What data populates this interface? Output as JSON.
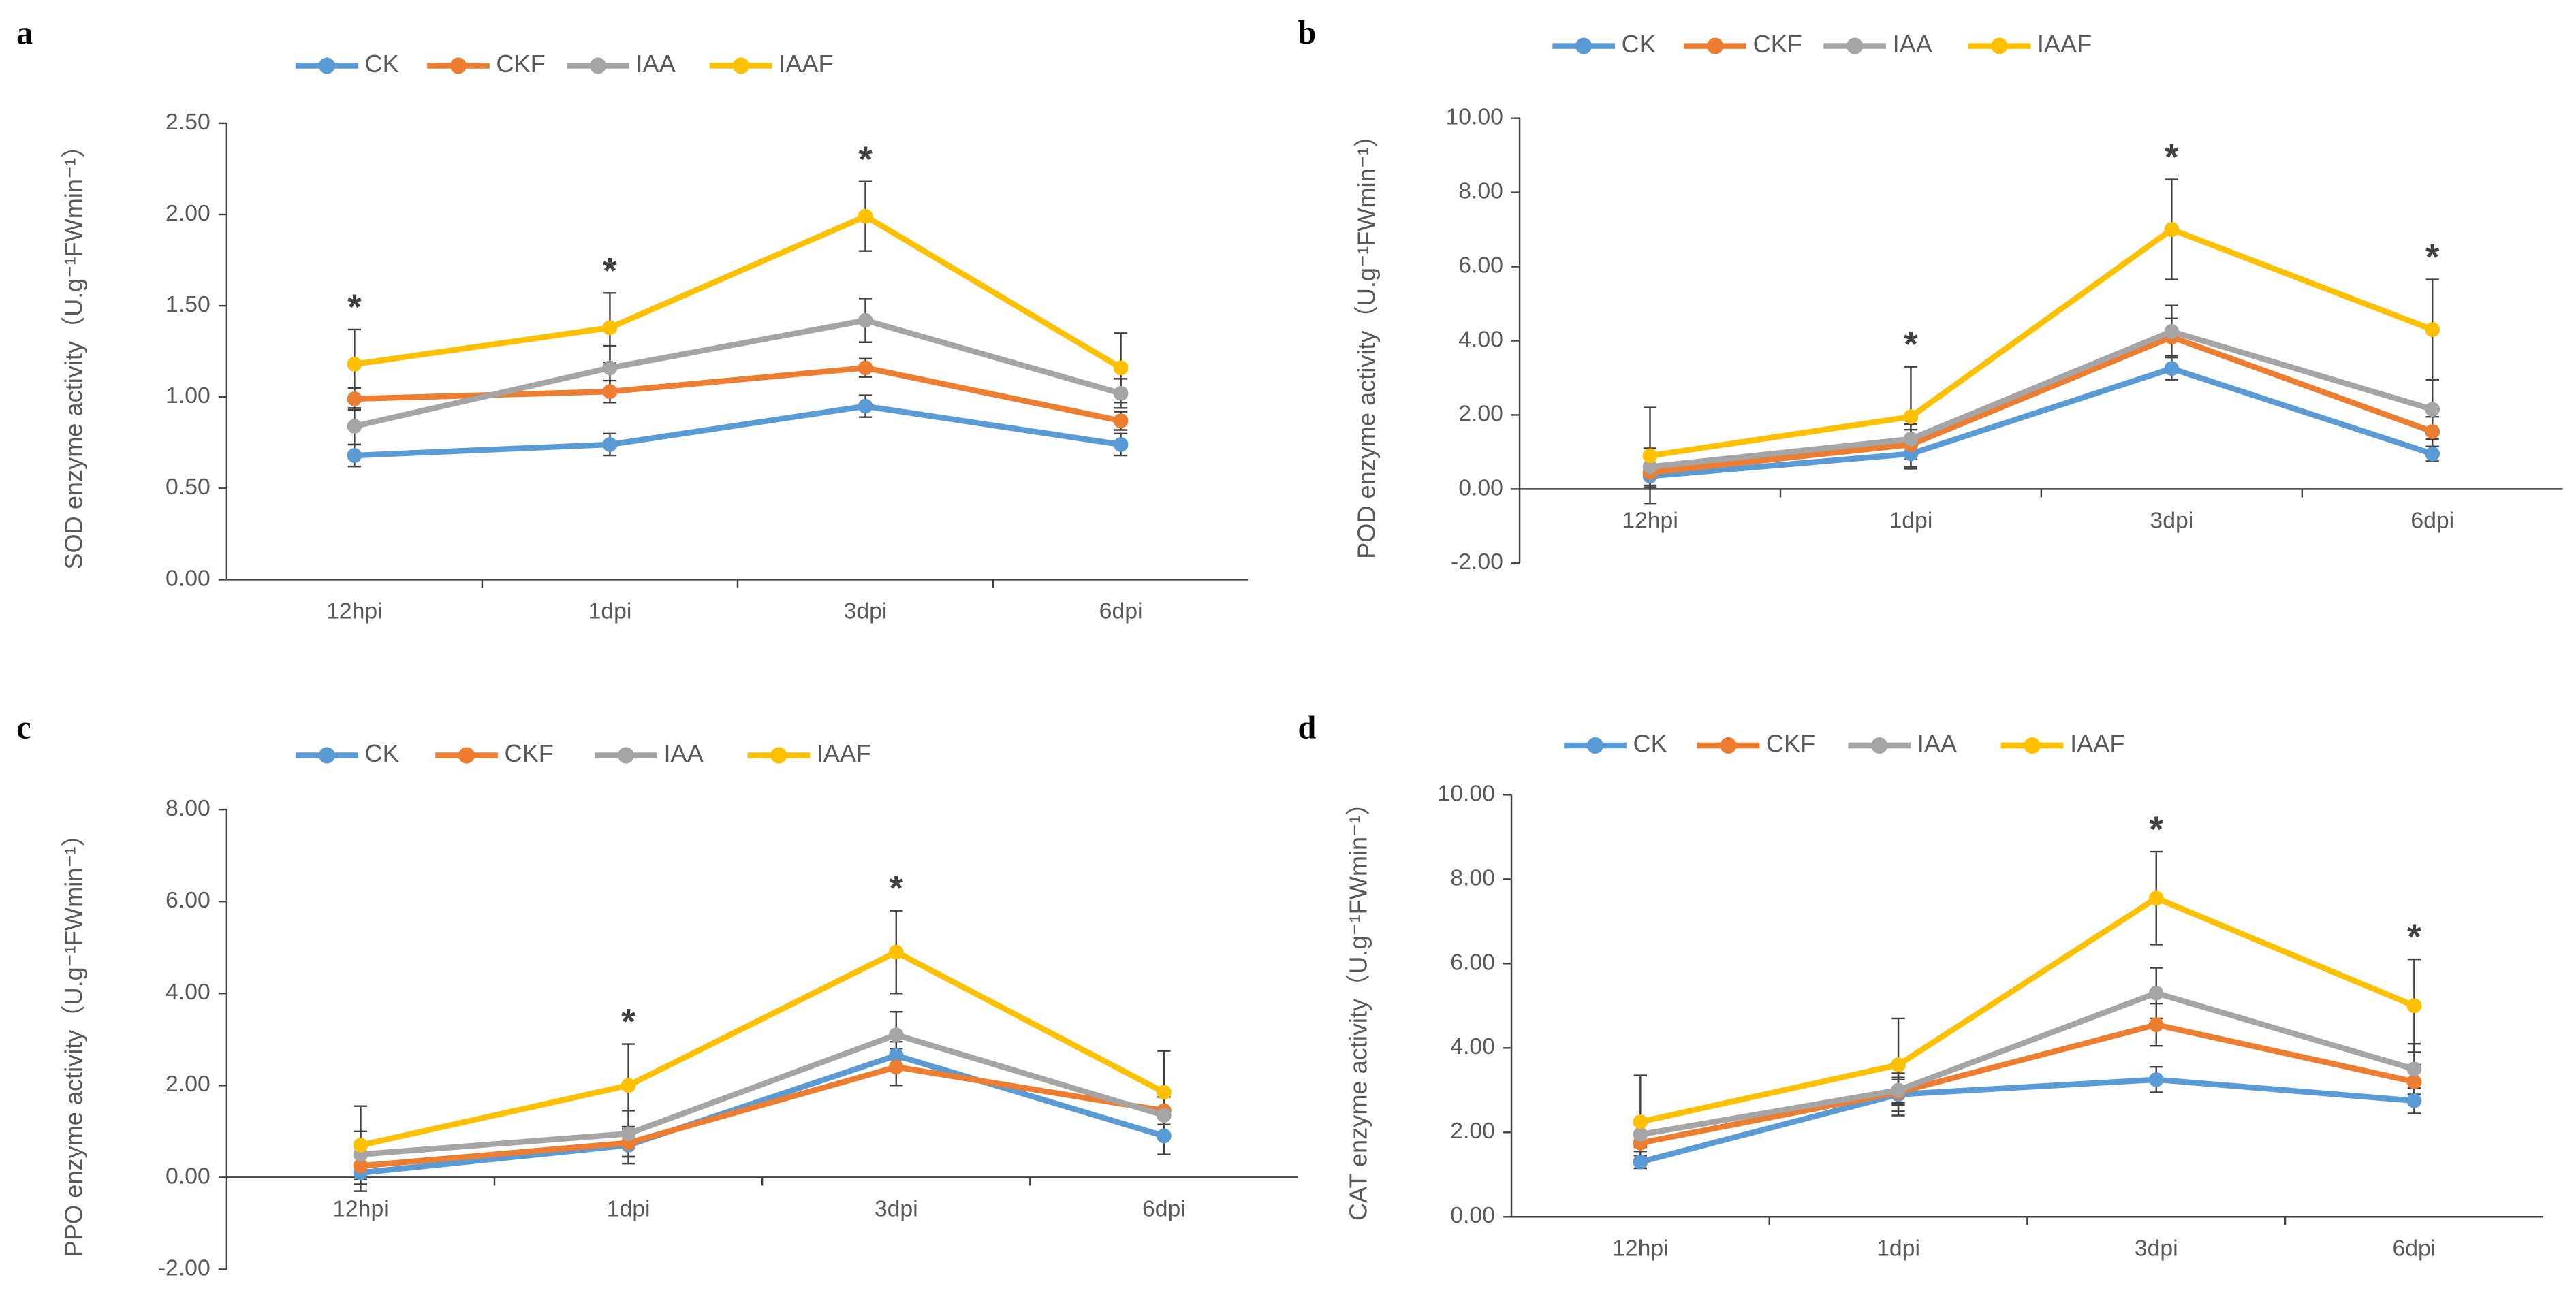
{
  "chart_data": [
    {
      "type": "line",
      "label": "a",
      "y_label": "SOD enzyme activity（U.g⁻¹FWmin⁻¹）",
      "categories": [
        "12hpi",
        "1dpi",
        "3dpi",
        "6dpi"
      ],
      "series": [
        {
          "name": "CK",
          "color": "#5B9BD5",
          "values": [
            0.68,
            0.74,
            0.95,
            0.74
          ],
          "errors": [
            0.06,
            0.06,
            0.06,
            0.06
          ]
        },
        {
          "name": "CKF",
          "color": "#ED7D31",
          "values": [
            0.99,
            1.03,
            1.16,
            0.87
          ],
          "errors": [
            0.06,
            0.06,
            0.05,
            0.05
          ]
        },
        {
          "name": "IAA",
          "color": "#A5A5A5",
          "values": [
            0.84,
            1.16,
            1.42,
            1.02
          ],
          "errors": [
            0.1,
            0.12,
            0.12,
            0.08
          ]
        },
        {
          "name": "IAAF",
          "color": "#FFC000",
          "values": [
            1.18,
            1.38,
            1.99,
            1.16
          ],
          "errors": [
            0.19,
            0.19,
            0.19,
            0.19
          ]
        }
      ],
      "markers": [
        "*",
        "*",
        "*",
        null
      ],
      "ylim": [
        0,
        2.5
      ],
      "yticks": [
        {
          "value": 0,
          "label": "0.00"
        },
        {
          "value": 0.5,
          "label": "0.50"
        },
        {
          "value": 1,
          "label": "1.00"
        },
        {
          "value": 1.5,
          "label": "1.50"
        },
        {
          "value": 2,
          "label": "2.00"
        },
        {
          "value": 2.5,
          "label": "2.50"
        }
      ]
    },
    {
      "type": "line",
      "label": "b",
      "y_label": "POD enzyme activity（U.g⁻¹FWmin⁻¹）",
      "categories": [
        "12hpi",
        "1dpi",
        "3dpi",
        "6dpi"
      ],
      "series": [
        {
          "name": "CK",
          "color": "#5B9BD5",
          "values": [
            0.35,
            0.95,
            3.25,
            0.95
          ],
          "errors": [
            0.3,
            0.4,
            0.3,
            0.2
          ]
        },
        {
          "name": "CKF",
          "color": "#ED7D31",
          "values": [
            0.45,
            1.2,
            4.1,
            1.55
          ],
          "errors": [
            0.4,
            0.4,
            0.5,
            0.4
          ]
        },
        {
          "name": "IAA",
          "color": "#A5A5A5",
          "values": [
            0.6,
            1.35,
            4.25,
            2.15
          ],
          "errors": [
            0.5,
            0.4,
            0.7,
            0.8
          ]
        },
        {
          "name": "IAAF",
          "color": "#FFC000",
          "values": [
            0.9,
            1.95,
            7.0,
            4.3
          ],
          "errors": [
            1.3,
            1.35,
            1.35,
            1.35
          ]
        }
      ],
      "markers": [
        null,
        "*",
        "*",
        "*"
      ],
      "ylim": [
        -2,
        10
      ],
      "yticks": [
        {
          "value": -2,
          "label": "-2.00"
        },
        {
          "value": 0,
          "label": "0.00"
        },
        {
          "value": 2,
          "label": "2.00"
        },
        {
          "value": 4,
          "label": "4.00"
        },
        {
          "value": 6,
          "label": "6.00"
        },
        {
          "value": 8,
          "label": "8.00"
        },
        {
          "value": 10,
          "label": "10.00"
        }
      ]
    },
    {
      "type": "line",
      "label": "c",
      "y_label": "PPO enzyme activity（U.g⁻¹FWmin⁻¹）",
      "categories": [
        "12hpi",
        "1dpi",
        "3dpi",
        "6dpi"
      ],
      "series": [
        {
          "name": "CK",
          "color": "#5B9BD5",
          "values": [
            0.1,
            0.7,
            2.65,
            0.9
          ],
          "errors": [
            0.4,
            0.4,
            0.3,
            0.4
          ]
        },
        {
          "name": "CKF",
          "color": "#ED7D31",
          "values": [
            0.25,
            0.75,
            2.4,
            1.45
          ],
          "errors": [
            0.3,
            0.3,
            0.4,
            0.3
          ]
        },
        {
          "name": "IAA",
          "color": "#A5A5A5",
          "values": [
            0.5,
            0.95,
            3.1,
            1.35
          ],
          "errors": [
            0.5,
            0.5,
            0.5,
            0.4
          ]
        },
        {
          "name": "IAAF",
          "color": "#FFC000",
          "values": [
            0.7,
            2.0,
            4.9,
            1.85
          ],
          "errors": [
            0.85,
            0.9,
            0.9,
            0.9
          ]
        }
      ],
      "markers": [
        null,
        "*",
        "*",
        null
      ],
      "ylim": [
        -2,
        8
      ],
      "yticks": [
        {
          "value": -2,
          "label": "-2.00"
        },
        {
          "value": 0,
          "label": "0.00"
        },
        {
          "value": 2,
          "label": "2.00"
        },
        {
          "value": 4,
          "label": "4.00"
        },
        {
          "value": 6,
          "label": "6.00"
        },
        {
          "value": 8,
          "label": "8.00"
        }
      ]
    },
    {
      "type": "line",
      "label": "d",
      "y_label": "CAT enzyme activity（U.g⁻¹FWmin⁻¹）",
      "categories": [
        "12hpi",
        "1dpi",
        "3dpi",
        "6dpi"
      ],
      "series": [
        {
          "name": "CK",
          "color": "#5B9BD5",
          "values": [
            1.3,
            2.9,
            3.25,
            2.75
          ],
          "errors": [
            0.15,
            0.5,
            0.3,
            0.3
          ]
        },
        {
          "name": "CKF",
          "color": "#ED7D31",
          "values": [
            1.75,
            2.95,
            4.55,
            3.2
          ],
          "errors": [
            0.2,
            0.3,
            0.5,
            0.4
          ]
        },
        {
          "name": "IAA",
          "color": "#A5A5A5",
          "values": [
            1.95,
            3.0,
            5.3,
            3.5
          ],
          "errors": [
            0.3,
            0.3,
            0.6,
            0.6
          ]
        },
        {
          "name": "IAAF",
          "color": "#FFC000",
          "values": [
            2.25,
            3.6,
            7.55,
            5.0
          ],
          "errors": [
            1.1,
            1.1,
            1.1,
            1.1
          ]
        }
      ],
      "markers": [
        null,
        null,
        "*",
        "*"
      ],
      "ylim": [
        0,
        10
      ],
      "yticks": [
        {
          "value": 0,
          "label": "0.00"
        },
        {
          "value": 2,
          "label": "2.00"
        },
        {
          "value": 4,
          "label": "4.00"
        },
        {
          "value": 6,
          "label": "6.00"
        },
        {
          "value": 8,
          "label": "8.00"
        },
        {
          "value": 10,
          "label": "10.00"
        }
      ]
    }
  ]
}
